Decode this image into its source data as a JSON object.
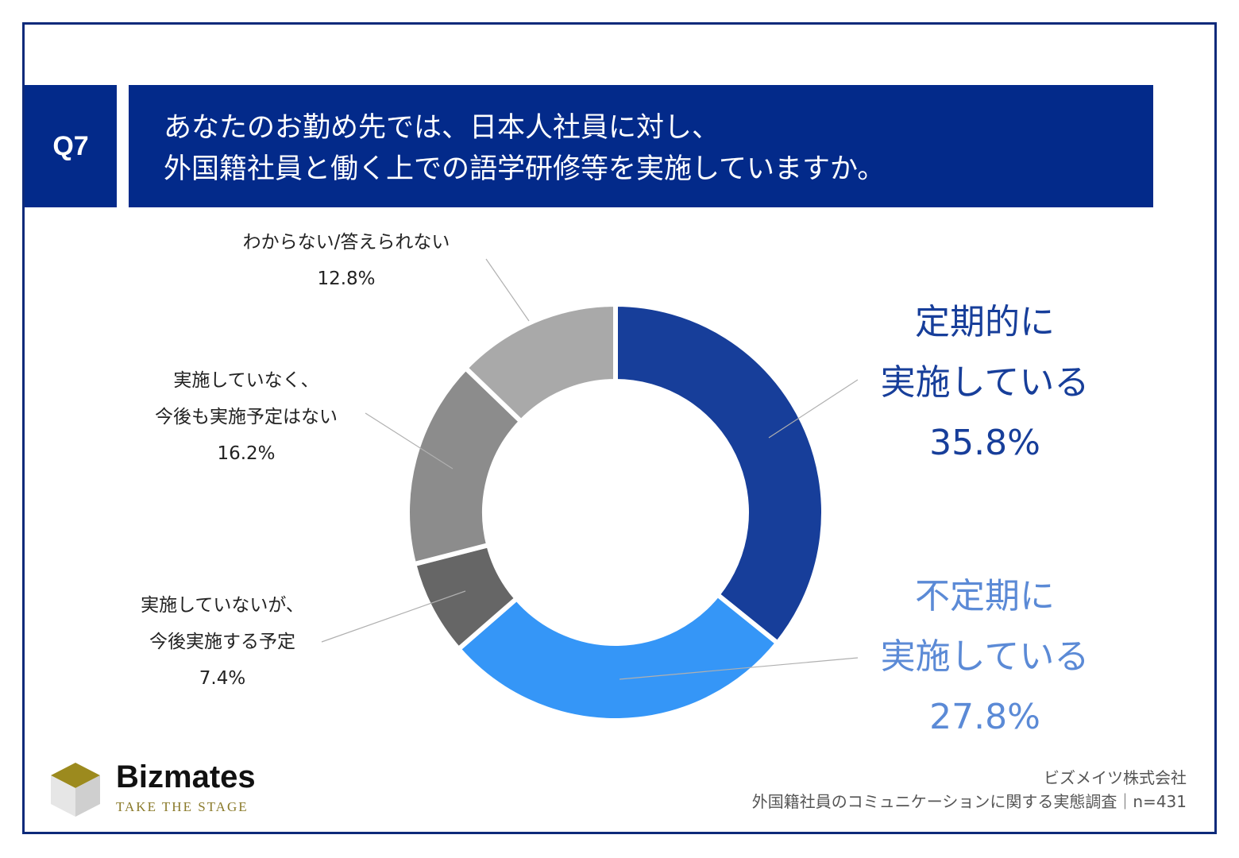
{
  "header": {
    "q_label": "Q7",
    "title_line1": "あなたのお勤め先では、日本人社員に対し、",
    "title_line2": "外国籍社員と働く上での語学研修等を実施していますか。"
  },
  "chart_data": {
    "type": "pie",
    "variant": "donut",
    "categories": [
      "定期的に実施している",
      "不定期に実施している",
      "実施していないが、今後実施する予定",
      "実施していなく、今後も実施予定はない",
      "わからない/答えられない"
    ],
    "values": [
      35.8,
      27.8,
      7.4,
      16.2,
      12.8
    ],
    "unit": "%",
    "colors": [
      "#173e9a",
      "#3596f7",
      "#666666",
      "#8c8c8c",
      "#a9a9a9"
    ]
  },
  "labels": {
    "regular": {
      "line1": "定期的に",
      "line2": "実施している",
      "pct": "35.8%"
    },
    "irregular": {
      "line1": "不定期に",
      "line2": "実施している",
      "pct": "27.8%"
    },
    "planned": {
      "line1": "実施していないが、",
      "line2": "今後実施する予定",
      "pct": "7.4%"
    },
    "not_planned": {
      "line1": "実施していなく、",
      "line2": "今後も実施予定はない",
      "pct": "16.2%"
    },
    "unknown": {
      "line1": "わからない/答えられない",
      "pct": "12.8%"
    }
  },
  "logo": {
    "name": "Bizmates",
    "tagline": "TAKE THE STAGE"
  },
  "source": {
    "company": "ビズメイツ株式会社",
    "survey": "外国籍社員のコミュニケーションに関する実態調査｜n=431"
  }
}
